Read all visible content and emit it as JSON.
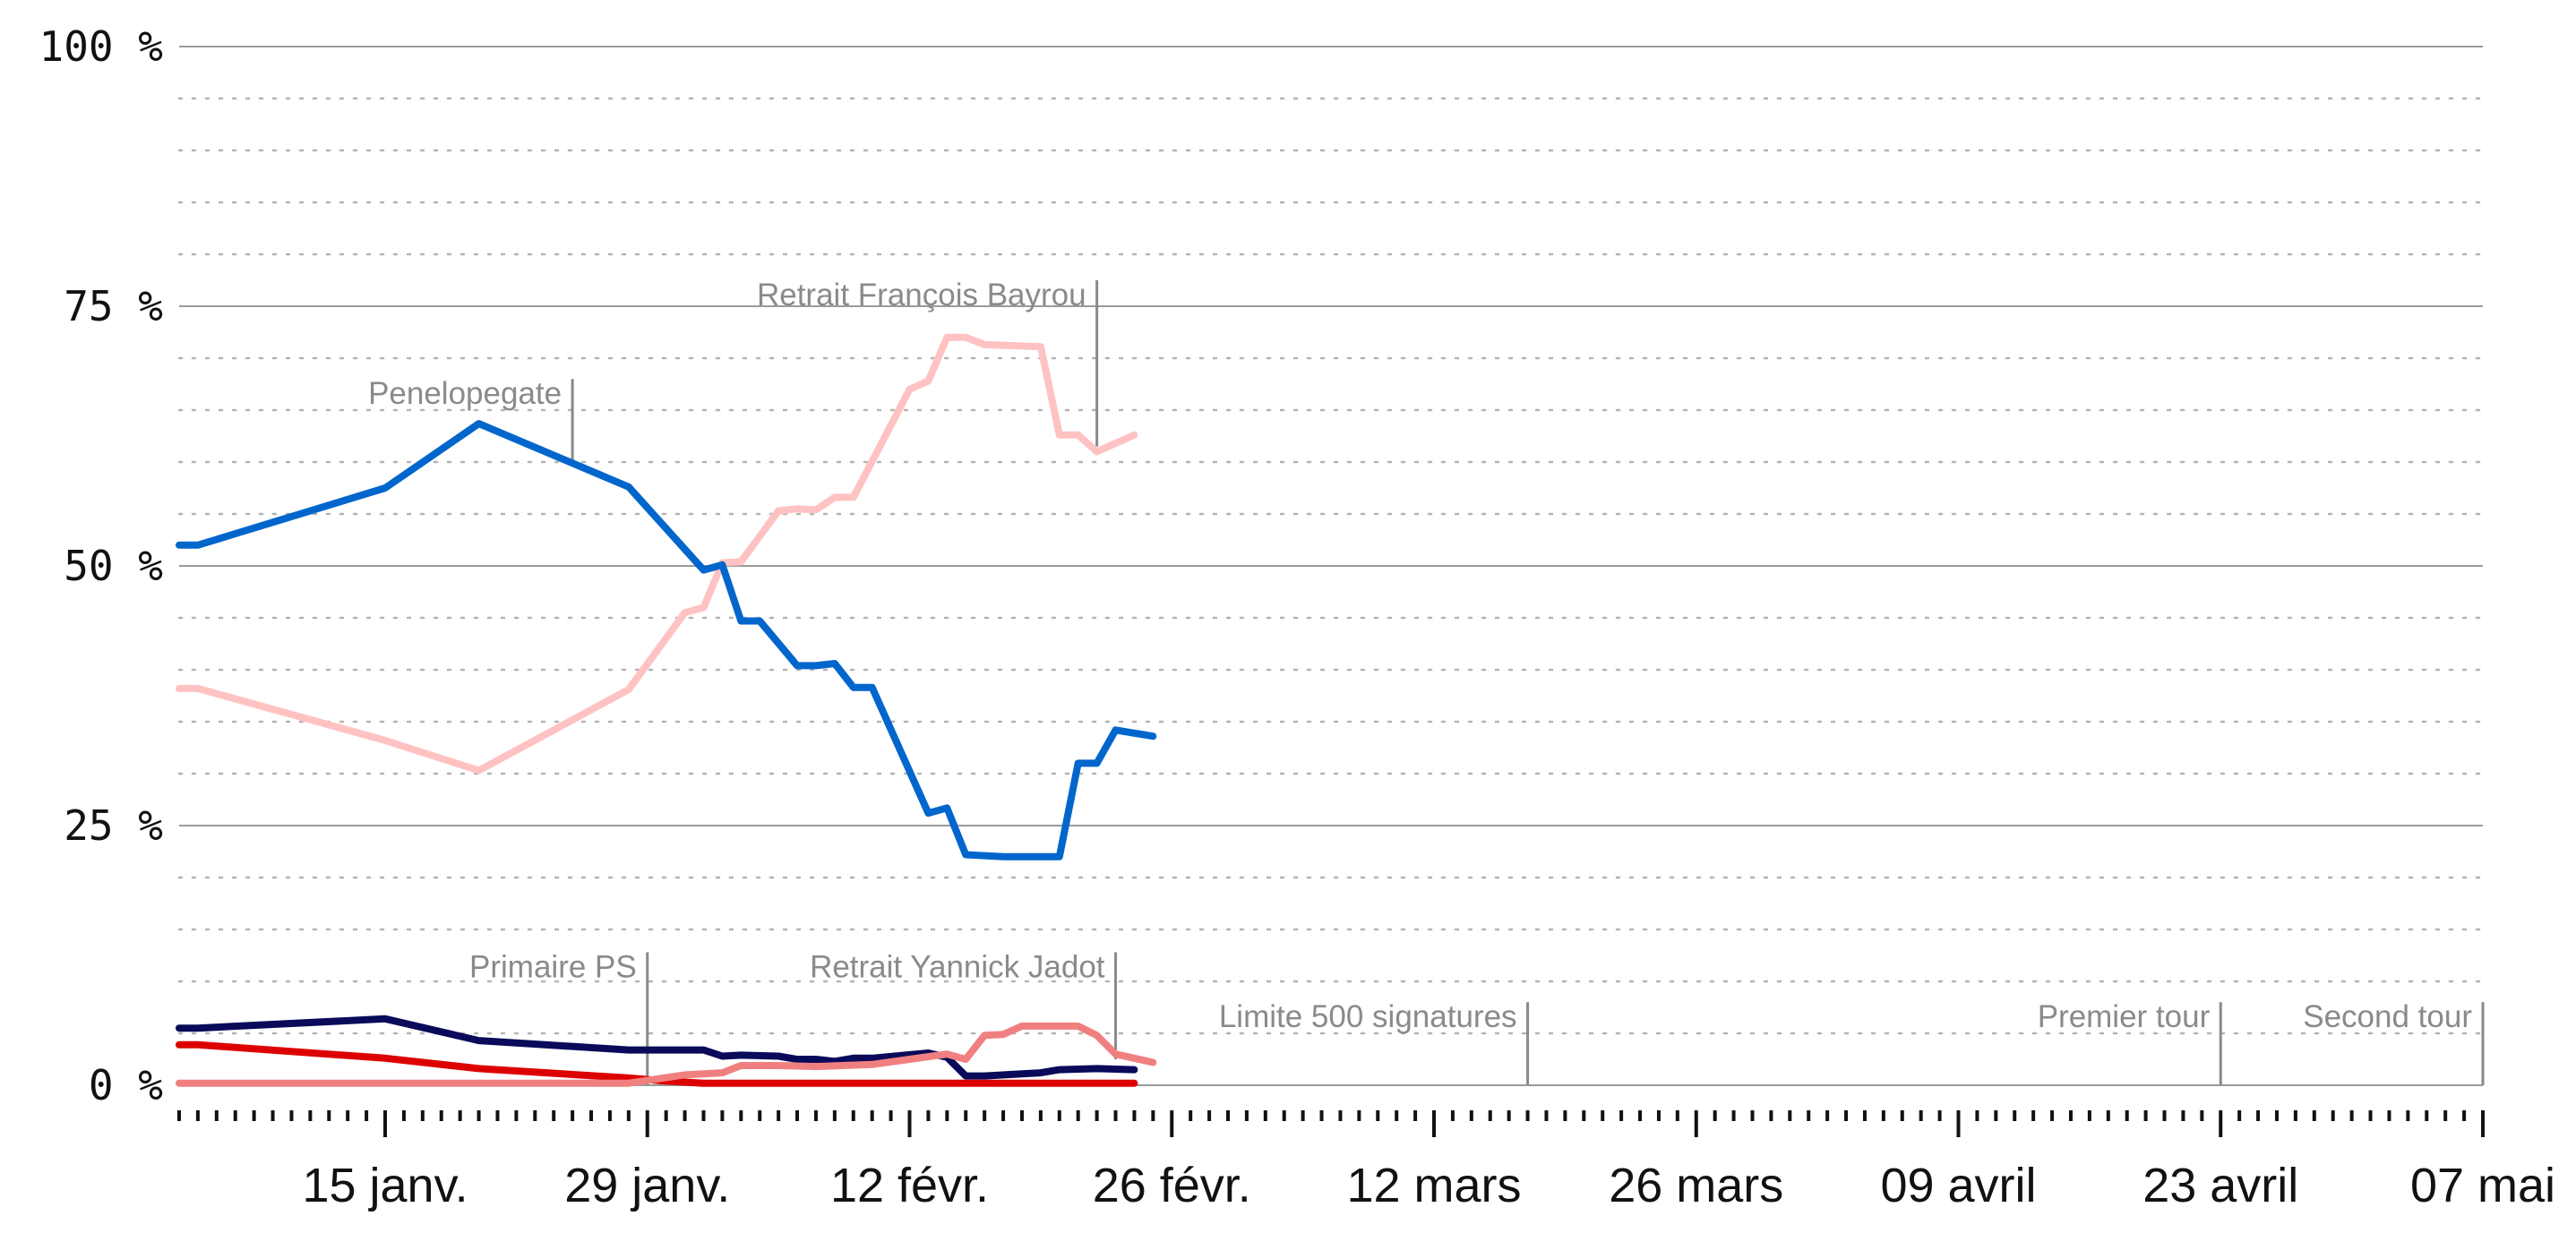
{
  "chart_data": {
    "type": "line",
    "title": "",
    "xlabel": "",
    "ylabel": "",
    "x_axis": {
      "type": "date",
      "range": [
        "2017-01-04",
        "2017-05-07"
      ],
      "tick_labels": [
        {
          "date": "2017-01-15",
          "label": "15 janv."
        },
        {
          "date": "2017-01-29",
          "label": "29 janv."
        },
        {
          "date": "2017-02-12",
          "label": "12 févr."
        },
        {
          "date": "2017-02-26",
          "label": "26 févr."
        },
        {
          "date": "2017-03-12",
          "label": "12 mars"
        },
        {
          "date": "2017-03-26",
          "label": "26 mars"
        },
        {
          "date": "2017-04-09",
          "label": "09 avril"
        },
        {
          "date": "2017-04-23",
          "label": "23 avril"
        },
        {
          "date": "2017-05-07",
          "label": "07 mai"
        }
      ]
    },
    "y_axis": {
      "range": [
        0,
        100
      ],
      "tick_labels": [
        {
          "value": 0,
          "label": "0 %"
        },
        {
          "value": 25,
          "label": "25 %"
        },
        {
          "value": 50,
          "label": "50 %"
        },
        {
          "value": 75,
          "label": "75 %"
        },
        {
          "value": 100,
          "label": "100 %"
        }
      ],
      "minor_grid_step": 5
    },
    "grid": true,
    "legend": "none",
    "annotations": [
      {
        "date": "2017-01-25",
        "label": "Penelopegate",
        "y_top": 68,
        "y_bottom": 60
      },
      {
        "date": "2017-01-29",
        "label": "Primaire PS",
        "y_top": 12.8,
        "y_bottom": 0
      },
      {
        "date": "2017-02-22",
        "label": "Retrait François Bayrou",
        "y_top": 77.5,
        "y_bottom": 61.5
      },
      {
        "date": "2017-02-23",
        "label": "Retrait Yannick Jadot",
        "y_top": 12.8,
        "y_bottom": 2.5
      },
      {
        "date": "2017-03-17",
        "label": "Limite 500 signatures",
        "y_top": 8,
        "y_bottom": 0
      },
      {
        "date": "2017-04-23",
        "label": "Premier tour",
        "y_top": 8,
        "y_bottom": 0
      },
      {
        "date": "2017-05-07",
        "label": "Second tour",
        "y_top": 8,
        "y_bottom": 0
      }
    ],
    "series": [
      {
        "color": "#ffc2c2",
        "points": [
          [
            "2017-01-04",
            38.2
          ],
          [
            "2017-01-05",
            38.2
          ],
          [
            "2017-01-15",
            33.2
          ],
          [
            "2017-01-20",
            30.3
          ],
          [
            "2017-01-28",
            38.1
          ],
          [
            "2017-01-31",
            45.5
          ],
          [
            "2017-02-01",
            46.0
          ],
          [
            "2017-02-02",
            50.3
          ],
          [
            "2017-02-03",
            50.4
          ],
          [
            "2017-02-05",
            55.3
          ],
          [
            "2017-02-06",
            55.5
          ],
          [
            "2017-02-07",
            55.4
          ],
          [
            "2017-02-08",
            56.6
          ],
          [
            "2017-02-09",
            56.6
          ],
          [
            "2017-02-12",
            67.0
          ],
          [
            "2017-02-13",
            67.8
          ],
          [
            "2017-02-14",
            72.0
          ],
          [
            "2017-02-15",
            72.0
          ],
          [
            "2017-02-16",
            71.3
          ],
          [
            "2017-02-19",
            71.1
          ],
          [
            "2017-02-20",
            62.6
          ],
          [
            "2017-02-21",
            62.6
          ],
          [
            "2017-02-22",
            61.0
          ],
          [
            "2017-02-24",
            62.6
          ]
        ]
      },
      {
        "color": "#0066cc",
        "points": [
          [
            "2017-01-04",
            52.0
          ],
          [
            "2017-01-05",
            52.0
          ],
          [
            "2017-01-15",
            57.5
          ],
          [
            "2017-01-20",
            63.7
          ],
          [
            "2017-01-28",
            57.6
          ],
          [
            "2017-02-01",
            49.6
          ],
          [
            "2017-02-02",
            50.1
          ],
          [
            "2017-02-03",
            44.7
          ],
          [
            "2017-02-04",
            44.7
          ],
          [
            "2017-02-06",
            40.4
          ],
          [
            "2017-02-07",
            40.4
          ],
          [
            "2017-02-08",
            40.6
          ],
          [
            "2017-02-09",
            38.3
          ],
          [
            "2017-02-10",
            38.3
          ],
          [
            "2017-02-13",
            26.2
          ],
          [
            "2017-02-14",
            26.7
          ],
          [
            "2017-02-15",
            22.2
          ],
          [
            "2017-02-17",
            22.0
          ],
          [
            "2017-02-20",
            22.0
          ],
          [
            "2017-02-21",
            31.0
          ],
          [
            "2017-02-22",
            31.0
          ],
          [
            "2017-02-23",
            34.2
          ],
          [
            "2017-02-25",
            33.6
          ]
        ]
      },
      {
        "color": "#0a0a5a",
        "points": [
          [
            "2017-01-04",
            5.5
          ],
          [
            "2017-01-05",
            5.5
          ],
          [
            "2017-01-15",
            6.4
          ],
          [
            "2017-01-20",
            4.3
          ],
          [
            "2017-01-28",
            3.4
          ],
          [
            "2017-02-01",
            3.4
          ],
          [
            "2017-02-02",
            2.8
          ],
          [
            "2017-02-03",
            2.9
          ],
          [
            "2017-02-05",
            2.8
          ],
          [
            "2017-02-06",
            2.5
          ],
          [
            "2017-02-07",
            2.5
          ],
          [
            "2017-02-08",
            2.3
          ],
          [
            "2017-02-09",
            2.6
          ],
          [
            "2017-02-10",
            2.6
          ],
          [
            "2017-02-13",
            3.1
          ],
          [
            "2017-02-14",
            2.7
          ],
          [
            "2017-02-15",
            0.9
          ],
          [
            "2017-02-16",
            0.9
          ],
          [
            "2017-02-18",
            1.1
          ],
          [
            "2017-02-19",
            1.2
          ],
          [
            "2017-02-20",
            1.5
          ],
          [
            "2017-02-22",
            1.6
          ],
          [
            "2017-02-24",
            1.5
          ]
        ]
      },
      {
        "color": "#dd0000",
        "points": [
          [
            "2017-01-04",
            3.9
          ],
          [
            "2017-01-05",
            3.9
          ],
          [
            "2017-01-15",
            2.6
          ],
          [
            "2017-01-20",
            1.6
          ],
          [
            "2017-01-28",
            0.7
          ],
          [
            "2017-01-30",
            0.4
          ],
          [
            "2017-02-01",
            0.2
          ],
          [
            "2017-02-15",
            0.2
          ],
          [
            "2017-02-24",
            0.2
          ]
        ]
      },
      {
        "color": "#f08080",
        "points": [
          [
            "2017-01-04",
            0.2
          ],
          [
            "2017-01-28",
            0.2
          ],
          [
            "2017-01-31",
            1.0
          ],
          [
            "2017-02-02",
            1.2
          ],
          [
            "2017-02-03",
            1.9
          ],
          [
            "2017-02-05",
            1.9
          ],
          [
            "2017-02-07",
            1.8
          ],
          [
            "2017-02-10",
            2.0
          ],
          [
            "2017-02-14",
            3.0
          ],
          [
            "2017-02-15",
            2.5
          ],
          [
            "2017-02-16",
            4.8
          ],
          [
            "2017-02-17",
            4.9
          ],
          [
            "2017-02-18",
            5.7
          ],
          [
            "2017-02-21",
            5.7
          ],
          [
            "2017-02-22",
            4.8
          ],
          [
            "2017-02-23",
            3.0
          ],
          [
            "2017-02-25",
            2.2
          ]
        ]
      }
    ]
  }
}
